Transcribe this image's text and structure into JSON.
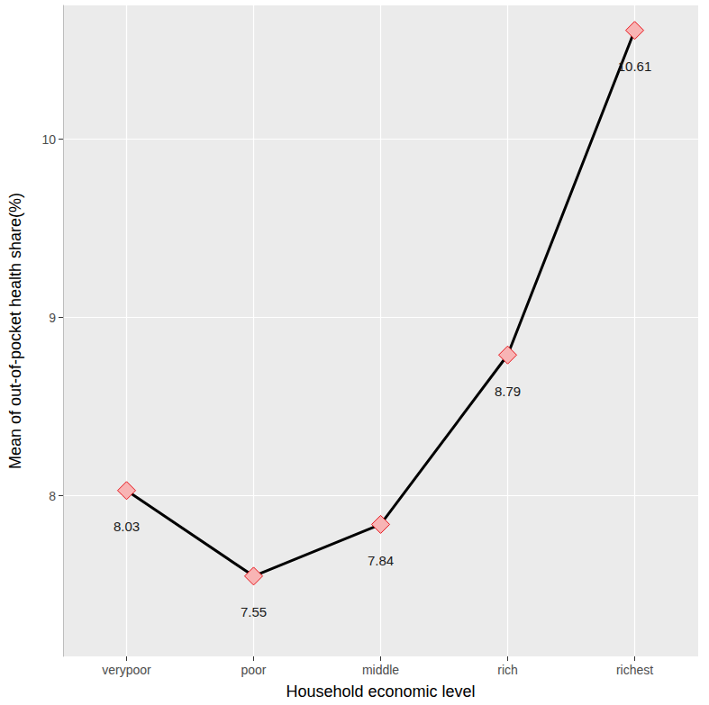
{
  "chart_data": {
    "type": "line",
    "x_label": "Household economic level",
    "y_label": "Mean of out-of-pocket health share(%)",
    "categories": [
      "verypoor",
      "poor",
      "middle",
      "rich",
      "richest"
    ],
    "values": [
      8.03,
      7.55,
      7.84,
      8.79,
      10.61
    ],
    "color": "#000000",
    "marker": "diamond",
    "ylim": [
      7.1,
      10.75
    ],
    "yticks": [
      8,
      9,
      10
    ],
    "grid": true,
    "data_labels": true
  }
}
